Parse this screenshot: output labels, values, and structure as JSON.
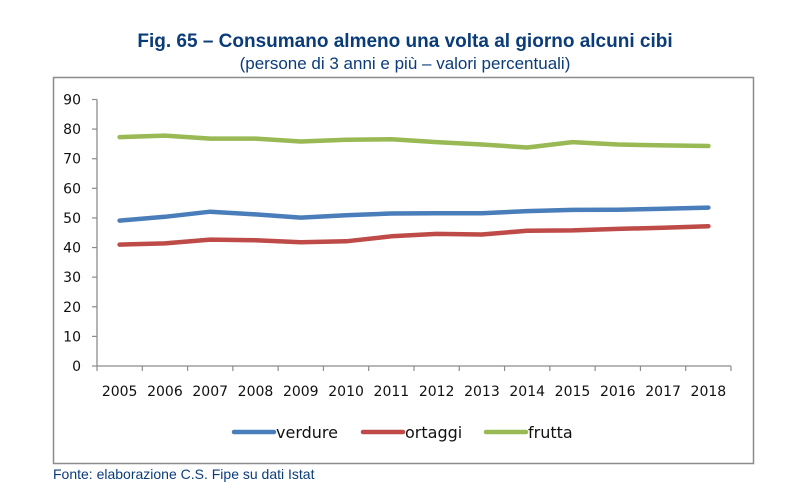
{
  "header": {
    "title": "Fig. 65 – Consumano almeno una volta al giorno alcuni cibi",
    "subtitle": "(persone di 3 anni e più – valori percentuali)"
  },
  "footer": {
    "source": "Fonte: elaborazione C.S. Fipe su dati Istat"
  },
  "chart_data": {
    "type": "line",
    "title": "Fig. 65 – Consumano almeno una volta al giorno alcuni cibi",
    "subtitle": "(persone di 3 anni e più – valori percentuali)",
    "xlabel": "",
    "ylabel": "",
    "categories": [
      "2005",
      "2006",
      "2007",
      "2008",
      "2009",
      "2010",
      "2011",
      "2012",
      "2013",
      "2014",
      "2015",
      "2016",
      "2017",
      "2018"
    ],
    "ylim": [
      0,
      90
    ],
    "yticks": [
      0,
      10,
      20,
      30,
      40,
      50,
      60,
      70,
      80,
      90
    ],
    "grid": false,
    "legend_position": "bottom",
    "series": [
      {
        "name": "verdure",
        "color": "#4a7ebb",
        "values": [
          49.1,
          50.4,
          52.1,
          51.2,
          50.1,
          50.9,
          51.5,
          51.6,
          51.6,
          52.3,
          52.7,
          52.8,
          53.1,
          53.5
        ]
      },
      {
        "name": "ortaggi",
        "color": "#be4b48",
        "values": [
          41.0,
          41.4,
          42.7,
          42.5,
          41.8,
          42.1,
          43.8,
          44.6,
          44.4,
          45.7,
          45.8,
          46.3,
          46.7,
          47.2
        ]
      },
      {
        "name": "frutta",
        "color": "#98b954",
        "values": [
          77.3,
          77.8,
          76.8,
          76.8,
          75.8,
          76.4,
          76.6,
          75.6,
          74.8,
          73.8,
          75.6,
          74.8,
          74.5,
          74.3
        ]
      }
    ]
  }
}
